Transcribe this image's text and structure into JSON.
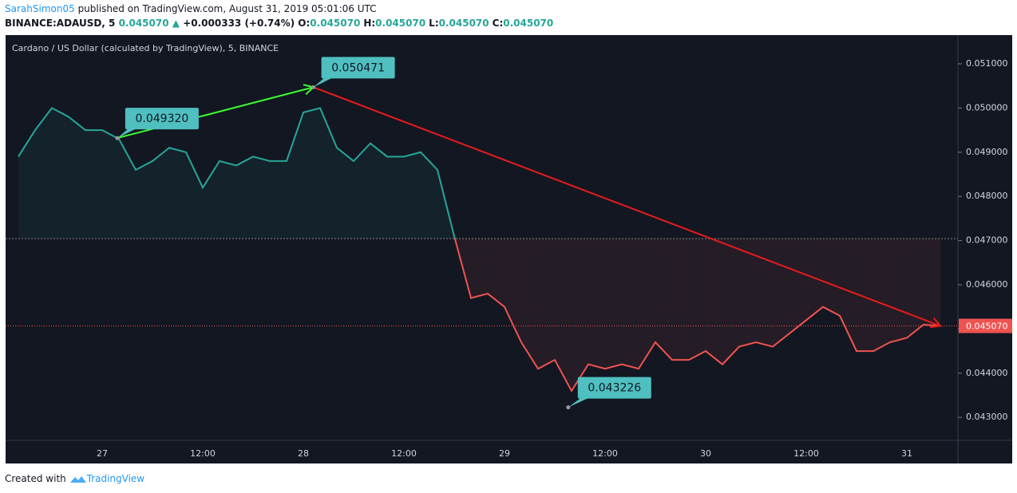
{
  "header": {
    "author": "SarahSimon05",
    "published": "published on TradingView.com, August 31, 2019 05:01:06 UTC",
    "symbol": "BINANCE:ADAUSD, 5",
    "price": "0.045070",
    "arrow": "▲",
    "change": "+0.000333 (+0.74%)",
    "ohlc": [
      {
        "key": "O:",
        "value": "0.045070"
      },
      {
        "key": "H:",
        "value": "0.045070"
      },
      {
        "key": "L:",
        "value": "0.045070"
      },
      {
        "key": "C:",
        "value": "0.045070"
      }
    ]
  },
  "footer": {
    "created": "Created with",
    "brand": "TradingView"
  },
  "chart_data": {
    "type": "line",
    "title": "Cardano / US Dollar (calculated by TradingView), 5, BINANCE",
    "categories": [
      null,
      null,
      null,
      null,
      null,
      "27",
      null,
      null,
      null,
      null,
      null,
      "12:00",
      null,
      null,
      null,
      null,
      null,
      "28",
      null,
      null,
      null,
      null,
      null,
      "12:00",
      null,
      null,
      null,
      null,
      null,
      "29",
      null,
      null,
      null,
      null,
      null,
      "12:00",
      null,
      null,
      null,
      null,
      null,
      "30",
      null,
      null,
      null,
      null,
      null,
      "12:00",
      null,
      null,
      null,
      null,
      null,
      "31",
      null,
      null
    ],
    "values": [
      0.0489,
      0.0495,
      0.05,
      0.0498,
      0.0495,
      0.0495,
      0.0493,
      0.0486,
      0.0488,
      0.0491,
      0.049,
      0.0482,
      0.0488,
      0.0487,
      0.0489,
      0.0488,
      0.0488,
      0.0499,
      0.05,
      0.0491,
      0.0488,
      0.0492,
      0.0489,
      0.0489,
      0.049,
      0.0486,
      0.0471,
      0.0457,
      0.0458,
      0.0455,
      0.0447,
      0.0441,
      0.0443,
      0.0436,
      0.0442,
      0.0441,
      0.0442,
      0.0441,
      0.0447,
      0.0443,
      0.0443,
      0.0445,
      0.0442,
      0.0446,
      0.0447,
      0.0446,
      0.0449,
      0.0452,
      0.0455,
      0.0453,
      0.0445,
      0.0445,
      0.0447,
      0.0448,
      0.0451,
      0.04507
    ],
    "baseline": 0.047045,
    "color_above": "#26a69a",
    "color_below": "#ef5350",
    "last_price": {
      "value": 0.04507,
      "label": "0.045070",
      "color": "#ef5350"
    },
    "ylim": [
      0.04248,
      0.05165
    ],
    "yticks": [
      {
        "value": 0.043,
        "label": "0.043000"
      },
      {
        "value": 0.044,
        "label": "0.044000"
      },
      {
        "value": 0.045,
        "label": "0.045000"
      },
      {
        "value": 0.046,
        "label": "0.046000"
      },
      {
        "value": 0.047,
        "label": "0.047000"
      },
      {
        "value": 0.048,
        "label": "0.048000"
      },
      {
        "value": 0.049,
        "label": "0.049000"
      },
      {
        "value": 0.05,
        "label": "0.050000"
      },
      {
        "value": 0.051,
        "label": "0.051000"
      }
    ],
    "annotations": [
      {
        "value": 0.04932,
        "label": "0.049320"
      },
      {
        "value": 0.050471,
        "label": "0.050471"
      },
      {
        "value": 0.043226,
        "label": "0.043226"
      }
    ],
    "trend_lines": [
      {
        "from": 0.04932,
        "to": 0.050471,
        "color": "#3dff2e"
      },
      {
        "from": 0.050471,
        "to": 0.04507,
        "color": "#e81c1c"
      }
    ]
  }
}
